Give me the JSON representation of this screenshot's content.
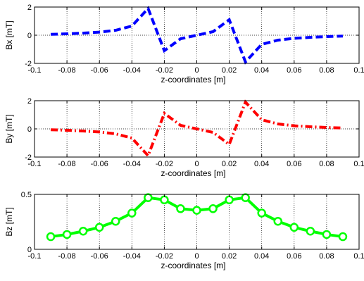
{
  "chart_data": [
    {
      "type": "line",
      "xlabel": "z-coordinates [m]",
      "ylabel": "Bx [mT]",
      "xlim": [
        -0.1,
        0.1
      ],
      "ylim": [
        -2,
        2
      ],
      "xticks": [
        -0.1,
        -0.08,
        -0.06,
        -0.04,
        -0.02,
        0,
        0.02,
        0.04,
        0.06,
        0.08,
        0.1
      ],
      "xtick_labels": [
        "-0.1",
        "-0.08",
        "-0.06",
        "-0.04",
        "-0.02",
        "0",
        "0.02",
        "0.04",
        "0.06",
        "0.08",
        "0.1"
      ],
      "yticks": [
        -2,
        0,
        2
      ],
      "ytick_labels": [
        "-2",
        "0",
        "2"
      ],
      "grid": true,
      "series": [
        {
          "color": "#0000ff",
          "line_style": "dashed",
          "marker": "none",
          "x": [
            -0.09,
            -0.08,
            -0.07,
            -0.06,
            -0.05,
            -0.04,
            -0.03,
            -0.02,
            -0.01,
            0,
            0.01,
            0.02,
            0.03,
            0.04,
            0.05,
            0.06,
            0.07,
            0.08,
            0.09
          ],
          "y": [
            0.06,
            0.1,
            0.15,
            0.22,
            0.35,
            0.65,
            1.9,
            -1.1,
            -0.25,
            0.0,
            0.25,
            1.1,
            -1.9,
            -0.65,
            -0.35,
            -0.22,
            -0.15,
            -0.1,
            -0.06
          ]
        }
      ]
    },
    {
      "type": "line",
      "xlabel": "z-coordinates [m]",
      "ylabel": "By [mT]",
      "xlim": [
        -0.1,
        0.1
      ],
      "ylim": [
        -2,
        2
      ],
      "xticks": [
        -0.1,
        -0.08,
        -0.06,
        -0.04,
        -0.02,
        0,
        0.02,
        0.04,
        0.06,
        0.08,
        0.1
      ],
      "xtick_labels": [
        "-0.1",
        "-0.08",
        "-0.06",
        "-0.04",
        "-0.02",
        "0",
        "0.02",
        "0.04",
        "0.06",
        "0.08",
        "0.1"
      ],
      "yticks": [
        -2,
        0,
        2
      ],
      "ytick_labels": [
        "-2",
        "0",
        "2"
      ],
      "grid": true,
      "series": [
        {
          "color": "#ff0000",
          "line_style": "dash-dot",
          "marker": "none",
          "x": [
            -0.09,
            -0.08,
            -0.07,
            -0.06,
            -0.05,
            -0.04,
            -0.03,
            -0.02,
            -0.01,
            0,
            0.01,
            0.02,
            0.03,
            0.04,
            0.05,
            0.06,
            0.07,
            0.08,
            0.09
          ],
          "y": [
            -0.06,
            -0.1,
            -0.15,
            -0.22,
            -0.35,
            -0.65,
            -1.9,
            1.1,
            0.25,
            0.0,
            -0.25,
            -1.1,
            1.9,
            0.65,
            0.35,
            0.22,
            0.15,
            0.1,
            0.06
          ]
        }
      ]
    },
    {
      "type": "line",
      "xlabel": "z-coordinates [m]",
      "ylabel": "Bz [mT]",
      "xlim": [
        -0.1,
        0.1
      ],
      "ylim": [
        0,
        0.5
      ],
      "xticks": [
        -0.1,
        -0.08,
        -0.06,
        -0.04,
        -0.02,
        0,
        0.02,
        0.04,
        0.06,
        0.08,
        0.1
      ],
      "xtick_labels": [
        "-0.1",
        "-0.08",
        "-0.06",
        "-0.04",
        "-0.02",
        "0",
        "0.02",
        "0.04",
        "0.06",
        "0.08",
        "0.1"
      ],
      "yticks": [
        0,
        0.5
      ],
      "ytick_labels": [
        "0",
        "0.5"
      ],
      "grid": true,
      "series": [
        {
          "color": "#00ff00",
          "line_style": "solid",
          "marker": "circle-open",
          "x": [
            -0.09,
            -0.08,
            -0.07,
            -0.06,
            -0.05,
            -0.04,
            -0.03,
            -0.02,
            -0.01,
            0,
            0.01,
            0.02,
            0.03,
            0.04,
            0.05,
            0.06,
            0.07,
            0.08,
            0.09
          ],
          "y": [
            0.115,
            0.135,
            0.165,
            0.2,
            0.255,
            0.33,
            0.47,
            0.45,
            0.37,
            0.355,
            0.37,
            0.45,
            0.47,
            0.33,
            0.255,
            0.2,
            0.165,
            0.135,
            0.115
          ]
        }
      ]
    }
  ]
}
